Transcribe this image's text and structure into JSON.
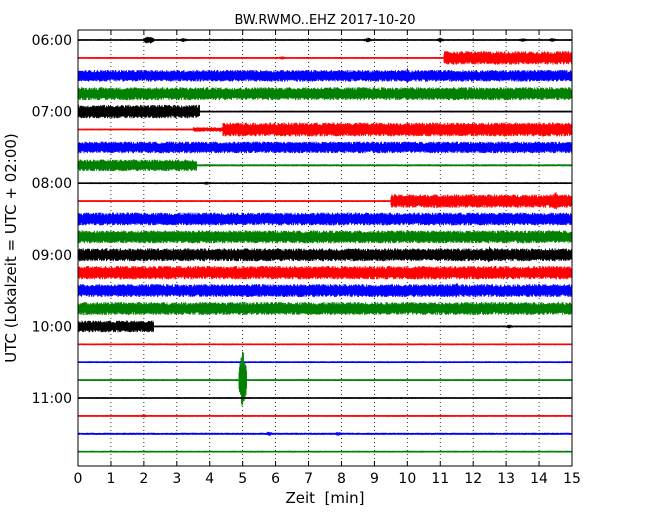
{
  "chart_data": {
    "type": "line",
    "title": "BW.RWMO..EHZ 2017-10-20",
    "xlabel": "Zeit  [min]",
    "ylabel": "UTC (Lokalzeit = UTC + 02:00)",
    "xlim": [
      0,
      15
    ],
    "xticks": [
      0,
      1,
      2,
      3,
      4,
      5,
      6,
      7,
      8,
      9,
      10,
      11,
      12,
      13,
      14,
      15
    ],
    "y_tick_labels": [
      "06:00",
      "07:00",
      "08:00",
      "09:00",
      "10:00",
      "11:00"
    ],
    "grid": "vertical dotted",
    "colors": {
      "black": "#000000",
      "red": "#ff0000",
      "blue": "#0000ff",
      "green": "#008000"
    },
    "series": [
      {
        "start": "06:00",
        "color": "black",
        "segments": [
          {
            "x": [
              0,
              15
            ],
            "amp": 0.1
          }
        ],
        "spikes": [
          {
            "x": 2.1,
            "amp": 0.45
          },
          {
            "x": 2.2,
            "amp": 0.4
          },
          {
            "x": 3.2,
            "amp": 0.25
          },
          {
            "x": 8.8,
            "amp": 0.3
          },
          {
            "x": 11.0,
            "amp": 0.25
          },
          {
            "x": 13.5,
            "amp": 0.25
          },
          {
            "x": 14.4,
            "amp": 0.25
          }
        ]
      },
      {
        "start": "06:15",
        "color": "red",
        "segments": [
          {
            "x": [
              0,
              11.1
            ],
            "amp": 0.1
          },
          {
            "x": [
              11.1,
              15
            ],
            "amp": 0.75
          }
        ],
        "spikes": [
          {
            "x": 6.2,
            "amp": 0.2
          }
        ]
      },
      {
        "start": "06:30",
        "color": "blue",
        "segments": [
          {
            "x": [
              0,
              15
            ],
            "amp": 0.65
          }
        ],
        "spikes": [
          {
            "x": 10.0,
            "amp": 0.85
          }
        ]
      },
      {
        "start": "06:45",
        "color": "green",
        "segments": [
          {
            "x": [
              0,
              15
            ],
            "amp": 0.72
          }
        ],
        "spikes": []
      },
      {
        "start": "07:00",
        "color": "black",
        "segments": [
          {
            "x": [
              0,
              3.7
            ],
            "amp": 0.75
          },
          {
            "x": [
              3.7,
              15
            ],
            "amp": 0.1
          }
        ],
        "spikes": []
      },
      {
        "start": "07:15",
        "color": "red",
        "segments": [
          {
            "x": [
              0,
              3.5
            ],
            "amp": 0.1
          },
          {
            "x": [
              3.5,
              4.4
            ],
            "amp": 0.25
          },
          {
            "x": [
              4.4,
              15
            ],
            "amp": 0.78
          }
        ],
        "spikes": []
      },
      {
        "start": "07:30",
        "color": "blue",
        "segments": [
          {
            "x": [
              0,
              15
            ],
            "amp": 0.65
          }
        ],
        "spikes": []
      },
      {
        "start": "07:45",
        "color": "green",
        "segments": [
          {
            "x": [
              0,
              3.6
            ],
            "amp": 0.65
          },
          {
            "x": [
              3.6,
              15
            ],
            "amp": 0.12
          }
        ],
        "spikes": []
      },
      {
        "start": "08:00",
        "color": "black",
        "segments": [
          {
            "x": [
              0,
              15
            ],
            "amp": 0.1
          }
        ],
        "spikes": [
          {
            "x": 3.9,
            "amp": 0.2
          }
        ]
      },
      {
        "start": "08:15",
        "color": "red",
        "segments": [
          {
            "x": [
              0,
              9.5
            ],
            "amp": 0.1
          },
          {
            "x": [
              9.5,
              15
            ],
            "amp": 0.75
          }
        ],
        "spikes": [
          {
            "x": 14.5,
            "amp": 1.1
          }
        ]
      },
      {
        "start": "08:30",
        "color": "blue",
        "segments": [
          {
            "x": [
              0,
              15
            ],
            "amp": 0.72
          }
        ],
        "spikes": []
      },
      {
        "start": "08:45",
        "color": "green",
        "segments": [
          {
            "x": [
              0,
              15
            ],
            "amp": 0.72
          }
        ],
        "spikes": []
      },
      {
        "start": "09:00",
        "color": "black",
        "segments": [
          {
            "x": [
              0,
              15
            ],
            "amp": 0.72
          }
        ],
        "spikes": [
          {
            "x": 12.5,
            "amp": 1.0
          }
        ]
      },
      {
        "start": "09:15",
        "color": "red",
        "segments": [
          {
            "x": [
              0,
              15
            ],
            "amp": 0.75
          }
        ],
        "spikes": []
      },
      {
        "start": "09:30",
        "color": "blue",
        "segments": [
          {
            "x": [
              0,
              15
            ],
            "amp": 0.72
          }
        ],
        "spikes": [
          {
            "x": 11.5,
            "amp": 0.9
          }
        ]
      },
      {
        "start": "09:45",
        "color": "green",
        "segments": [
          {
            "x": [
              0,
              15
            ],
            "amp": 0.72
          }
        ],
        "spikes": []
      },
      {
        "start": "10:00",
        "color": "black",
        "segments": [
          {
            "x": [
              0,
              2.3
            ],
            "amp": 0.65
          },
          {
            "x": [
              2.3,
              15
            ],
            "amp": 0.1
          }
        ],
        "spikes": [
          {
            "x": 13.1,
            "amp": 0.25
          }
        ]
      },
      {
        "start": "10:15",
        "color": "red",
        "segments": [
          {
            "x": [
              0,
              15
            ],
            "amp": 0.1
          }
        ],
        "spikes": []
      },
      {
        "start": "10:30",
        "color": "blue",
        "segments": [
          {
            "x": [
              0,
              15
            ],
            "amp": 0.1
          }
        ],
        "spikes": []
      },
      {
        "start": "10:45",
        "color": "green",
        "segments": [
          {
            "x": [
              0,
              15
            ],
            "amp": 0.1
          }
        ],
        "spikes": [
          {
            "x": 5.0,
            "amp": 3.5
          }
        ]
      },
      {
        "start": "11:00",
        "color": "black",
        "segments": [
          {
            "x": [
              0,
              15
            ],
            "amp": 0.1
          }
        ],
        "spikes": []
      },
      {
        "start": "11:15",
        "color": "red",
        "segments": [
          {
            "x": [
              0,
              15
            ],
            "amp": 0.1
          }
        ],
        "spikes": [
          {
            "x": 2.0,
            "amp": 0.2
          }
        ]
      },
      {
        "start": "11:30",
        "color": "blue",
        "segments": [
          {
            "x": [
              0,
              15
            ],
            "amp": 0.12
          }
        ],
        "spikes": [
          {
            "x": 5.8,
            "amp": 0.25
          },
          {
            "x": 7.9,
            "amp": 0.25
          }
        ]
      },
      {
        "start": "11:45",
        "color": "green",
        "segments": [
          {
            "x": [
              0,
              15
            ],
            "amp": 0.1
          }
        ],
        "spikes": []
      }
    ]
  }
}
